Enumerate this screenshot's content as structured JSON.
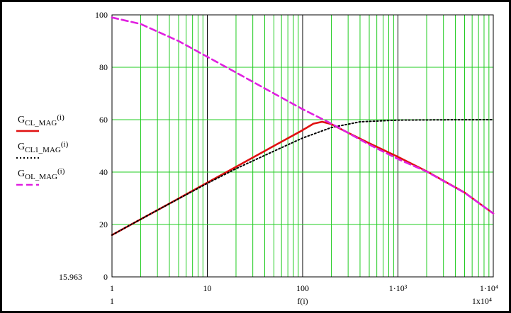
{
  "chart_data": {
    "type": "line",
    "x_scale": "log",
    "xlim": [
      1,
      10000
    ],
    "ylim": [
      0,
      100
    ],
    "grid": true,
    "grid_color": "#22cc22",
    "xlabel": "f(i)",
    "x_tick_labels": [
      "1",
      "10",
      "100",
      "1·10³",
      "1·10⁴"
    ],
    "x_tick_values": [
      1,
      10,
      100,
      1000,
      10000
    ],
    "y_tick_values": [
      0,
      20,
      40,
      60,
      80,
      100
    ],
    "y_tick_labels": [
      "0",
      "20",
      "40",
      "60",
      "80",
      "100"
    ],
    "y_min_readout": "15.963",
    "x_min_readout": "1",
    "x_max_readout": "1x10⁴",
    "legend_placement": "left",
    "series": [
      {
        "name": "G_CL_MAG(i)",
        "legend_main": "G",
        "legend_sub": "CL_MAG",
        "legend_arg": "(i)",
        "color": "#e01010",
        "style": "solid",
        "points": [
          [
            1,
            15.96
          ],
          [
            2,
            22
          ],
          [
            5,
            29.9
          ],
          [
            10,
            35.96
          ],
          [
            20,
            42
          ],
          [
            50,
            50
          ],
          [
            100,
            56
          ],
          [
            130,
            58.5
          ],
          [
            160,
            59.2
          ],
          [
            200,
            58.3
          ],
          [
            300,
            55
          ],
          [
            500,
            51
          ],
          [
            1000,
            45.8
          ],
          [
            2000,
            40.3
          ],
          [
            5000,
            32.2
          ],
          [
            10000,
            24.2
          ]
        ]
      },
      {
        "name": "G_CL1_MAG(i)",
        "legend_main": "G",
        "legend_sub": "CL1_MAG",
        "legend_arg": "(i)",
        "color": "#000000",
        "style": "dotted",
        "points": [
          [
            1,
            15.96
          ],
          [
            2,
            22
          ],
          [
            5,
            29.8
          ],
          [
            10,
            35.7
          ],
          [
            20,
            41.3
          ],
          [
            50,
            48
          ],
          [
            100,
            53
          ],
          [
            200,
            57
          ],
          [
            400,
            59.2
          ],
          [
            1000,
            59.85
          ],
          [
            3000,
            59.95
          ],
          [
            10000,
            60
          ]
        ]
      },
      {
        "name": "G_OL_MAG(i)",
        "legend_main": "G",
        "legend_sub": "OL_MAG",
        "legend_arg": "(i)",
        "color": "#e020e0",
        "style": "dashed",
        "points": [
          [
            1,
            99
          ],
          [
            2,
            96.5
          ],
          [
            5,
            90
          ],
          [
            10,
            84
          ],
          [
            20,
            78
          ],
          [
            50,
            70
          ],
          [
            100,
            64
          ],
          [
            200,
            58.5
          ],
          [
            500,
            50.5
          ],
          [
            1000,
            45
          ],
          [
            2000,
            40.2
          ],
          [
            5000,
            32.1
          ],
          [
            10000,
            24.2
          ]
        ]
      }
    ]
  }
}
